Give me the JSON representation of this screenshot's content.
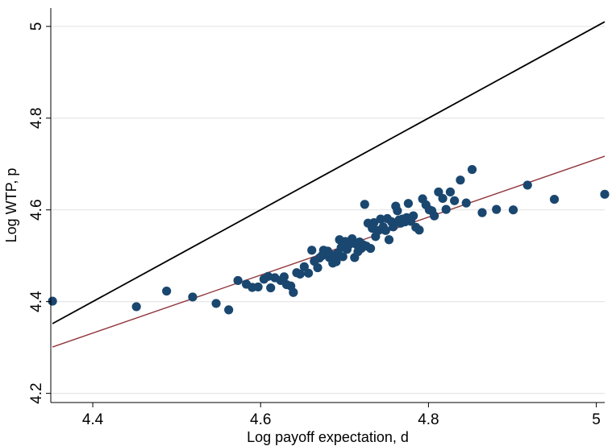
{
  "chart_data": {
    "type": "scatter",
    "title": "",
    "xlabel": "Log payoff expectation, d",
    "ylabel": "Log WTP, p",
    "xlim": [
      4.35,
      5.01
    ],
    "ylim": [
      4.18,
      5.04
    ],
    "xticks": [
      4.4,
      4.6,
      4.8,
      5
    ],
    "xtick_labels": [
      "4.4",
      "4.6",
      "4.8",
      "5"
    ],
    "yticks": [
      4.2,
      4.4,
      4.6,
      4.8,
      5
    ],
    "ytick_labels": [
      "4.2",
      "4.4",
      "4.6",
      "4.8",
      "5"
    ],
    "grid": "horizontal",
    "legend": "none",
    "colors": {
      "points": "#1a476f",
      "fit_line": "#90353b",
      "reference_line": "#000000",
      "grid": "#e6e6e6"
    },
    "points": [
      [
        4.352,
        4.401
      ],
      [
        4.452,
        4.389
      ],
      [
        4.488,
        4.423
      ],
      [
        4.519,
        4.41
      ],
      [
        4.547,
        4.396
      ],
      [
        4.562,
        4.382
      ],
      [
        4.573,
        4.446
      ],
      [
        4.583,
        4.438
      ],
      [
        4.59,
        4.431
      ],
      [
        4.597,
        4.432
      ],
      [
        4.604,
        4.449
      ],
      [
        4.609,
        4.455
      ],
      [
        4.612,
        4.43
      ],
      [
        4.617,
        4.452
      ],
      [
        4.624,
        4.446
      ],
      [
        4.628,
        4.454
      ],
      [
        4.631,
        4.437
      ],
      [
        4.636,
        4.434
      ],
      [
        4.639,
        4.42
      ],
      [
        4.643,
        4.463
      ],
      [
        4.647,
        4.46
      ],
      [
        4.652,
        4.476
      ],
      [
        4.657,
        4.462
      ],
      [
        4.661,
        4.512
      ],
      [
        4.664,
        4.488
      ],
      [
        4.668,
        4.474
      ],
      [
        4.67,
        4.495
      ],
      [
        4.673,
        4.5
      ],
      [
        4.675,
        4.512
      ],
      [
        4.678,
        4.505
      ],
      [
        4.68,
        4.51
      ],
      [
        4.682,
        4.496
      ],
      [
        4.684,
        4.502
      ],
      [
        4.686,
        4.484
      ],
      [
        4.688,
        4.497
      ],
      [
        4.69,
        4.487
      ],
      [
        4.692,
        4.506
      ],
      [
        4.694,
        4.535
      ],
      [
        4.696,
        4.518
      ],
      [
        4.698,
        4.498
      ],
      [
        4.701,
        4.531
      ],
      [
        4.703,
        4.514
      ],
      [
        4.706,
        4.525
      ],
      [
        4.709,
        4.537
      ],
      [
        4.712,
        4.496
      ],
      [
        4.714,
        4.525
      ],
      [
        4.716,
        4.509
      ],
      [
        4.718,
        4.53
      ],
      [
        4.72,
        4.516
      ],
      [
        4.722,
        4.524
      ],
      [
        4.724,
        4.612
      ],
      [
        4.726,
        4.521
      ],
      [
        4.728,
        4.571
      ],
      [
        4.731,
        4.516
      ],
      [
        4.733,
        4.56
      ],
      [
        4.735,
        4.572
      ],
      [
        4.737,
        4.542
      ],
      [
        4.74,
        4.555
      ],
      [
        4.743,
        4.58
      ],
      [
        4.746,
        4.563
      ],
      [
        4.749,
        4.555
      ],
      [
        4.751,
        4.581
      ],
      [
        4.753,
        4.535
      ],
      [
        4.756,
        4.574
      ],
      [
        4.758,
        4.563
      ],
      [
        4.761,
        4.608
      ],
      [
        4.763,
        4.598
      ],
      [
        4.765,
        4.578
      ],
      [
        4.767,
        4.571
      ],
      [
        4.769,
        4.58
      ],
      [
        4.772,
        4.574
      ],
      [
        4.774,
        4.583
      ],
      [
        4.776,
        4.614
      ],
      [
        4.779,
        4.575
      ],
      [
        4.782,
        4.587
      ],
      [
        4.785,
        4.562
      ],
      [
        4.789,
        4.556
      ],
      [
        4.793,
        4.624
      ],
      [
        4.797,
        4.611
      ],
      [
        4.801,
        4.6
      ],
      [
        4.804,
        4.598
      ],
      [
        4.807,
        4.587
      ],
      [
        4.812,
        4.639
      ],
      [
        4.817,
        4.625
      ],
      [
        4.821,
        4.601
      ],
      [
        4.826,
        4.639
      ],
      [
        4.831,
        4.62
      ],
      [
        4.838,
        4.665
      ],
      [
        4.845,
        4.615
      ],
      [
        4.852,
        4.688
      ],
      [
        4.864,
        4.594
      ],
      [
        4.881,
        4.601
      ],
      [
        4.901,
        4.6
      ],
      [
        4.918,
        4.654
      ],
      [
        4.95,
        4.623
      ],
      [
        5.01,
        4.634
      ]
    ],
    "lines": [
      {
        "role": "reference",
        "points": [
          [
            4.352,
            4.352
          ],
          [
            5.01,
            5.01
          ]
        ]
      },
      {
        "role": "fitted",
        "points": [
          [
            4.352,
            4.301
          ],
          [
            5.01,
            4.717
          ]
        ]
      }
    ]
  }
}
